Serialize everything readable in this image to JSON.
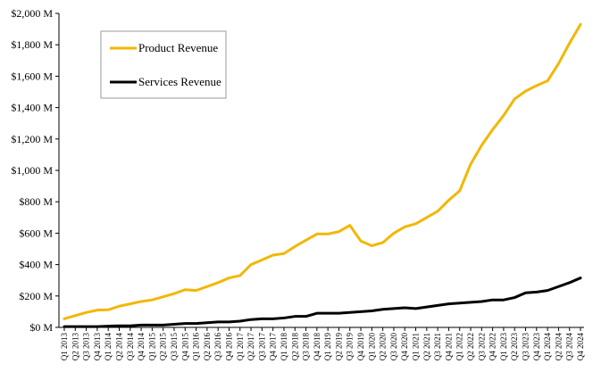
{
  "chart_data": {
    "type": "line",
    "x": [
      "Q1 2013",
      "Q2 2013",
      "Q3 2013",
      "Q4 2013",
      "Q1 2014",
      "Q2 2014",
      "Q3 2014",
      "Q4 2014",
      "Q1 2015",
      "Q2 2015",
      "Q3 2015",
      "Q4 2015",
      "Q1 2016",
      "Q2 2016",
      "Q3 2016",
      "Q4 2016",
      "Q1 2017",
      "Q2 2017",
      "Q3 2017",
      "Q4 2017",
      "Q1 2018",
      "Q2 2018",
      "Q3 2018",
      "Q4 2018",
      "Q1 2019",
      "Q2 2019",
      "Q3 2019",
      "Q4 2019",
      "Q1 2020",
      "Q2 2020",
      "Q3 2020",
      "Q4 2020",
      "Q1 2021",
      "Q2 2021",
      "Q3 2021",
      "Q4 2021",
      "Q1 2022",
      "Q2 2022",
      "Q3 2022",
      "Q4 2022",
      "Q1 2023",
      "Q2 2023",
      "Q3 2023",
      "Q4 2023",
      "Q1 2024",
      "Q2 2024",
      "Q3 2024",
      "Q4 2024"
    ],
    "series": [
      {
        "name": "Product Revenue",
        "color": "#F2B705",
        "values": [
          55,
          75,
          95,
          110,
          112,
          135,
          150,
          165,
          175,
          195,
          215,
          240,
          235,
          260,
          285,
          315,
          330,
          400,
          430,
          460,
          470,
          515,
          555,
          595,
          595,
          610,
          650,
          550,
          520,
          540,
          600,
          640,
          660,
          700,
          740,
          810,
          870,
          1040,
          1160,
          1260,
          1350,
          1455,
          1505,
          1540,
          1570,
          1680,
          1810,
          1930
        ]
      },
      {
        "name": "Services Revenue",
        "color": "#000000",
        "values": [
          5,
          5,
          5,
          5,
          8,
          10,
          10,
          15,
          15,
          15,
          20,
          25,
          25,
          30,
          35,
          35,
          40,
          50,
          55,
          55,
          60,
          70,
          70,
          90,
          90,
          90,
          95,
          100,
          105,
          115,
          120,
          125,
          120,
          130,
          140,
          150,
          155,
          160,
          165,
          175,
          175,
          190,
          220,
          225,
          235,
          260,
          285,
          315
        ]
      }
    ],
    "xlabel": "",
    "ylabel": "",
    "ylim": [
      0,
      2000
    ],
    "yticks": [
      0,
      200,
      400,
      600,
      800,
      1000,
      1200,
      1400,
      1600,
      1800,
      2000
    ],
    "ytick_labels": [
      "$0 M",
      "$200 M",
      "$400 M",
      "$600 M",
      "$800 M",
      "$1,000 M",
      "$1,200 M",
      "$1,400 M",
      "$1,600 M",
      "$1,800 M",
      "$2,000 M"
    ],
    "grid": false,
    "legend_position": "top-left"
  }
}
